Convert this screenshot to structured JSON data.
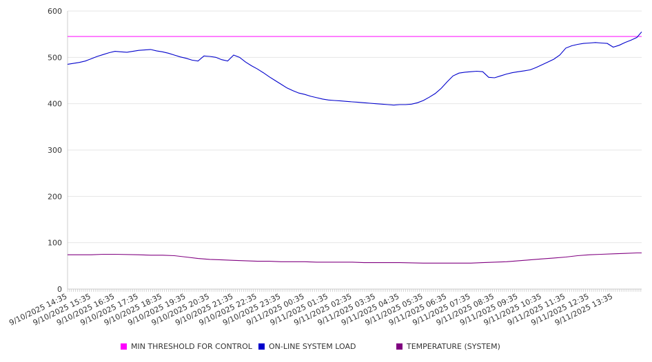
{
  "chart_data": {
    "type": "line",
    "title": "",
    "xlabel": "",
    "ylabel": "",
    "ylim": [
      0,
      600
    ],
    "y_ticks": [
      0,
      100,
      200,
      300,
      400,
      500,
      600
    ],
    "x_tick_labels": [
      "9/10/2025 14:35",
      "9/10/2025 15:35",
      "9/10/2025 16:35",
      "9/10/2025 17:35",
      "9/10/2025 18:35",
      "9/10/2025 19:35",
      "9/10/2025 20:35",
      "9/10/2025 21:35",
      "9/10/2025 22:35",
      "9/10/2025 23:35",
      "9/11/2025 00:35",
      "9/11/2025 01:35",
      "9/11/2025 02:35",
      "9/11/2025 03:35",
      "9/11/2025 04:35",
      "9/11/2025 05:35",
      "9/11/2025 06:35",
      "9/11/2025 07:35",
      "9/11/2025 08:35",
      "9/11/2025 09:35",
      "9/11/2025 10:35",
      "9/11/2025 11:35",
      "9/11/2025 12:35",
      "9/11/2025 13:35"
    ],
    "grid": "horizontal",
    "legend_position": "bottom",
    "series": [
      {
        "name": "MIN THRESHOLD FOR CONTROL",
        "color": "#ff00ff",
        "points": [
          [
            0,
            545
          ],
          [
            24.2,
            545
          ]
        ]
      },
      {
        "name": "ON-LINE SYSTEM LOAD",
        "color": "#0000cc",
        "points": [
          [
            0,
            485
          ],
          [
            0.25,
            487
          ],
          [
            0.5,
            489
          ],
          [
            0.75,
            492
          ],
          [
            1,
            497
          ],
          [
            1.25,
            502
          ],
          [
            1.5,
            506
          ],
          [
            1.75,
            510
          ],
          [
            2,
            513
          ],
          [
            2.25,
            512
          ],
          [
            2.5,
            511
          ],
          [
            2.75,
            513
          ],
          [
            3,
            515
          ],
          [
            3.25,
            516
          ],
          [
            3.5,
            517
          ],
          [
            3.75,
            514
          ],
          [
            4,
            512
          ],
          [
            4.25,
            509
          ],
          [
            4.5,
            505
          ],
          [
            4.75,
            501
          ],
          [
            5,
            498
          ],
          [
            5.25,
            494
          ],
          [
            5.5,
            492
          ],
          [
            5.75,
            503
          ],
          [
            6,
            502
          ],
          [
            6.25,
            500
          ],
          [
            6.5,
            495
          ],
          [
            6.75,
            492
          ],
          [
            7,
            505
          ],
          [
            7.25,
            500
          ],
          [
            7.5,
            490
          ],
          [
            7.75,
            482
          ],
          [
            8,
            475
          ],
          [
            8.25,
            467
          ],
          [
            8.5,
            458
          ],
          [
            8.75,
            450
          ],
          [
            9,
            442
          ],
          [
            9.25,
            434
          ],
          [
            9.5,
            428
          ],
          [
            9.75,
            423
          ],
          [
            10,
            420
          ],
          [
            10.25,
            416
          ],
          [
            10.5,
            413
          ],
          [
            10.75,
            410
          ],
          [
            11,
            408
          ],
          [
            11.25,
            407
          ],
          [
            11.5,
            406
          ],
          [
            11.75,
            405
          ],
          [
            12,
            404
          ],
          [
            12.25,
            403
          ],
          [
            12.5,
            402
          ],
          [
            12.75,
            401
          ],
          [
            13,
            400
          ],
          [
            13.25,
            399
          ],
          [
            13.5,
            398
          ],
          [
            13.75,
            397
          ],
          [
            14,
            398
          ],
          [
            14.25,
            398
          ],
          [
            14.5,
            399
          ],
          [
            14.75,
            402
          ],
          [
            15,
            407
          ],
          [
            15.25,
            414
          ],
          [
            15.5,
            422
          ],
          [
            15.75,
            433
          ],
          [
            16,
            447
          ],
          [
            16.25,
            460
          ],
          [
            16.5,
            466
          ],
          [
            16.75,
            468
          ],
          [
            17,
            469
          ],
          [
            17.25,
            470
          ],
          [
            17.5,
            469
          ],
          [
            17.75,
            457
          ],
          [
            18,
            456
          ],
          [
            18.25,
            460
          ],
          [
            18.5,
            464
          ],
          [
            18.75,
            467
          ],
          [
            19,
            469
          ],
          [
            19.25,
            471
          ],
          [
            19.5,
            473
          ],
          [
            19.75,
            478
          ],
          [
            20,
            484
          ],
          [
            20.25,
            490
          ],
          [
            20.5,
            496
          ],
          [
            20.75,
            505
          ],
          [
            21,
            520
          ],
          [
            21.25,
            525
          ],
          [
            21.5,
            528
          ],
          [
            21.75,
            530
          ],
          [
            22,
            531
          ],
          [
            22.25,
            532
          ],
          [
            22.5,
            531
          ],
          [
            22.75,
            530
          ],
          [
            23,
            522
          ],
          [
            23.25,
            526
          ],
          [
            23.5,
            532
          ],
          [
            23.75,
            537
          ],
          [
            24,
            543
          ],
          [
            24.2,
            555
          ]
        ]
      },
      {
        "name": "TEMPERATURE (SYSTEM)",
        "color": "#800080",
        "points": [
          [
            0,
            74
          ],
          [
            1,
            74
          ],
          [
            1.5,
            75
          ],
          [
            2,
            75
          ],
          [
            3,
            74
          ],
          [
            3.5,
            73
          ],
          [
            4,
            73
          ],
          [
            4.5,
            72
          ],
          [
            5,
            69
          ],
          [
            5.5,
            66
          ],
          [
            6,
            64
          ],
          [
            6.5,
            63
          ],
          [
            7,
            62
          ],
          [
            7.5,
            61
          ],
          [
            8,
            60
          ],
          [
            8.5,
            60
          ],
          [
            9,
            59
          ],
          [
            10,
            59
          ],
          [
            10.5,
            58
          ],
          [
            11,
            58
          ],
          [
            12,
            58
          ],
          [
            12.5,
            57
          ],
          [
            13,
            57
          ],
          [
            14,
            57
          ],
          [
            15,
            56
          ],
          [
            16,
            56
          ],
          [
            17,
            56
          ],
          [
            17.5,
            57
          ],
          [
            18,
            58
          ],
          [
            18.5,
            59
          ],
          [
            19,
            61
          ],
          [
            19.5,
            63
          ],
          [
            20,
            65
          ],
          [
            20.5,
            67
          ],
          [
            21,
            69
          ],
          [
            21.5,
            72
          ],
          [
            22,
            74
          ],
          [
            22.5,
            75
          ],
          [
            23,
            76
          ],
          [
            23.5,
            77
          ],
          [
            24,
            78
          ],
          [
            24.2,
            78
          ]
        ]
      }
    ]
  }
}
